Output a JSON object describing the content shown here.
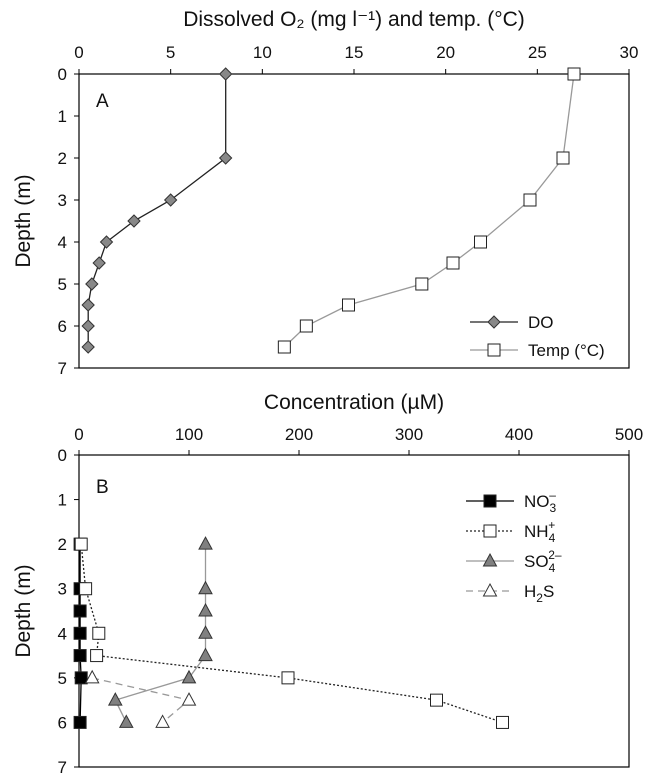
{
  "chart_data": [
    {
      "type": "line",
      "panel": "A",
      "title": "Dissolved O₂ (mg l⁻¹) and temp. (°C)",
      "ylabel": "Depth (m)",
      "xlim": [
        0,
        30
      ],
      "ylim": [
        0,
        7
      ],
      "x_ticks": [
        "0",
        "5",
        "10",
        "15",
        "20",
        "25",
        "30"
      ],
      "y_ticks": [
        "0",
        "1",
        "2",
        "3",
        "4",
        "5",
        "6",
        "7"
      ],
      "y_reversed": true,
      "x_axis_position": "top",
      "legend_position": "bottom-right",
      "series": [
        {
          "name": "DO",
          "marker": "diamond",
          "color": "#888888",
          "line_color": "#222222",
          "line_style": "solid",
          "points": [
            [
              8.0,
              0
            ],
            [
              8.0,
              2
            ],
            [
              5.0,
              3
            ],
            [
              3.0,
              3.5
            ],
            [
              1.5,
              4
            ],
            [
              1.1,
              4.5
            ],
            [
              0.7,
              5
            ],
            [
              0.5,
              5.5
            ],
            [
              0.5,
              6
            ],
            [
              0.5,
              6.5
            ]
          ]
        },
        {
          "name": "Temp (°C)",
          "marker": "square-open",
          "color": "#ffffff",
          "line_color": "#999999",
          "line_style": "solid",
          "points": [
            [
              27.0,
              0
            ],
            [
              26.4,
              2
            ],
            [
              24.6,
              3
            ],
            [
              21.9,
              4
            ],
            [
              20.4,
              4.5
            ],
            [
              18.7,
              5
            ],
            [
              14.7,
              5.5
            ],
            [
              12.4,
              6
            ],
            [
              11.2,
              6.5
            ]
          ]
        }
      ]
    },
    {
      "type": "line",
      "panel": "B",
      "title": "Concentration (µM)",
      "ylabel": "Depth (m)",
      "xlim": [
        0,
        500
      ],
      "ylim": [
        0,
        7
      ],
      "x_ticks": [
        "0",
        "100",
        "200",
        "300",
        "400",
        "500"
      ],
      "y_ticks": [
        "0",
        "1",
        "2",
        "3",
        "4",
        "5",
        "6",
        "7"
      ],
      "y_reversed": true,
      "x_axis_position": "top",
      "legend_position": "top-right",
      "series": [
        {
          "name": "NO₃⁻",
          "label_main": "NO",
          "label_sub": "3",
          "label_sup": "–",
          "marker": "square-filled",
          "color": "#000000",
          "line_color": "#000000",
          "line_style": "solid",
          "points": [
            [
              1,
              2
            ],
            [
              1,
              3
            ],
            [
              1,
              3.5
            ],
            [
              1,
              4
            ],
            [
              1,
              4.5
            ],
            [
              2,
              5
            ],
            [
              1,
              6
            ]
          ]
        },
        {
          "name": "NH₄⁺",
          "label_main": "NH",
          "label_sub": "4",
          "label_sup": "+",
          "marker": "square-open",
          "color": "#ffffff",
          "line_color": "#222222",
          "line_style": "dotted",
          "points": [
            [
              2,
              2
            ],
            [
              6,
              3
            ],
            [
              18,
              4
            ],
            [
              16,
              4.5
            ],
            [
              190,
              5
            ],
            [
              325,
              5.5
            ],
            [
              385,
              6
            ]
          ]
        },
        {
          "name": "SO₄²⁻",
          "label_main": "SO",
          "label_sub": "4",
          "label_sup": "2–",
          "marker": "triangle-filled",
          "color": "#808080",
          "line_color": "#999999",
          "line_style": "solid",
          "points": [
            [
              115,
              2
            ],
            [
              115,
              3
            ],
            [
              115,
              3.5
            ],
            [
              115,
              4
            ],
            [
              115,
              4.5
            ],
            [
              100,
              5
            ],
            [
              33,
              5.5
            ],
            [
              43,
              6
            ]
          ]
        },
        {
          "name": "H₂S",
          "label_main": "H",
          "label_sub": "2",
          "label_sup": "",
          "label_tail": "S",
          "marker": "triangle-open",
          "color": "#ffffff",
          "line_color": "#999999",
          "line_style": "dashed",
          "points": [
            [
              12,
              5
            ],
            [
              100,
              5.5
            ],
            [
              76,
              6
            ]
          ]
        }
      ]
    }
  ]
}
